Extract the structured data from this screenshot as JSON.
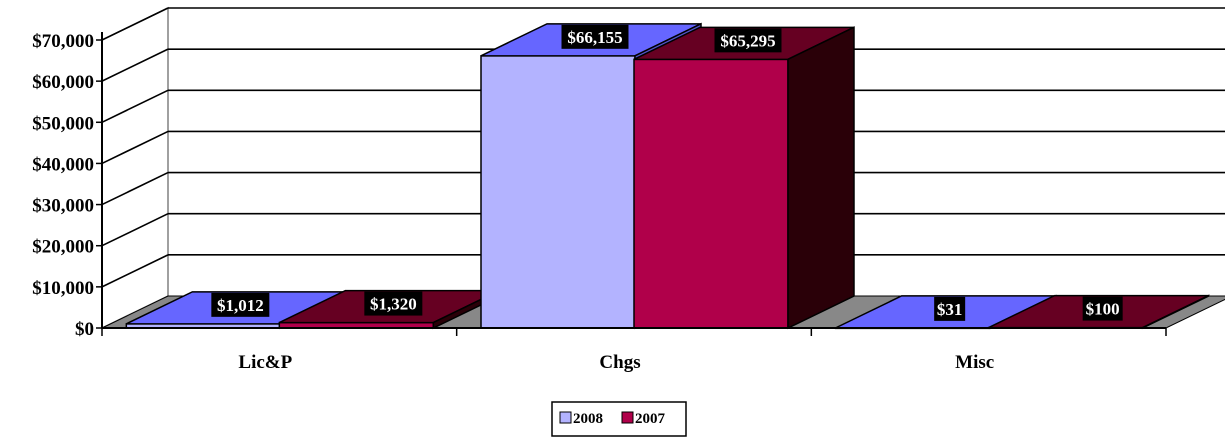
{
  "chart_data": {
    "type": "bar",
    "categories": [
      "Lic&P",
      "Chgs",
      "Misc"
    ],
    "series": [
      {
        "name": "2008",
        "values": [
          1012,
          66155,
          31
        ],
        "labels": [
          "$1,012",
          "$66,155",
          "$31"
        ]
      },
      {
        "name": "2007",
        "values": [
          1320,
          65295,
          100
        ],
        "labels": [
          "$1,320",
          "$65,295",
          "$100"
        ]
      }
    ],
    "yticks": [
      "$0",
      "$10,000",
      "$20,000",
      "$30,000",
      "$40,000",
      "$50,000",
      "$60,000",
      "$70,000"
    ],
    "ylim": [
      0,
      70000
    ],
    "grid": true,
    "legend_position": "bottom"
  },
  "colors": {
    "series_2008": [
      "#b3b3ff",
      "#6666ff",
      "#5555cc"
    ],
    "series_2007": [
      "#b0004a",
      "#660022",
      "#2a0008"
    ],
    "back_wall": "#ffffff",
    "floor": "#888888"
  }
}
